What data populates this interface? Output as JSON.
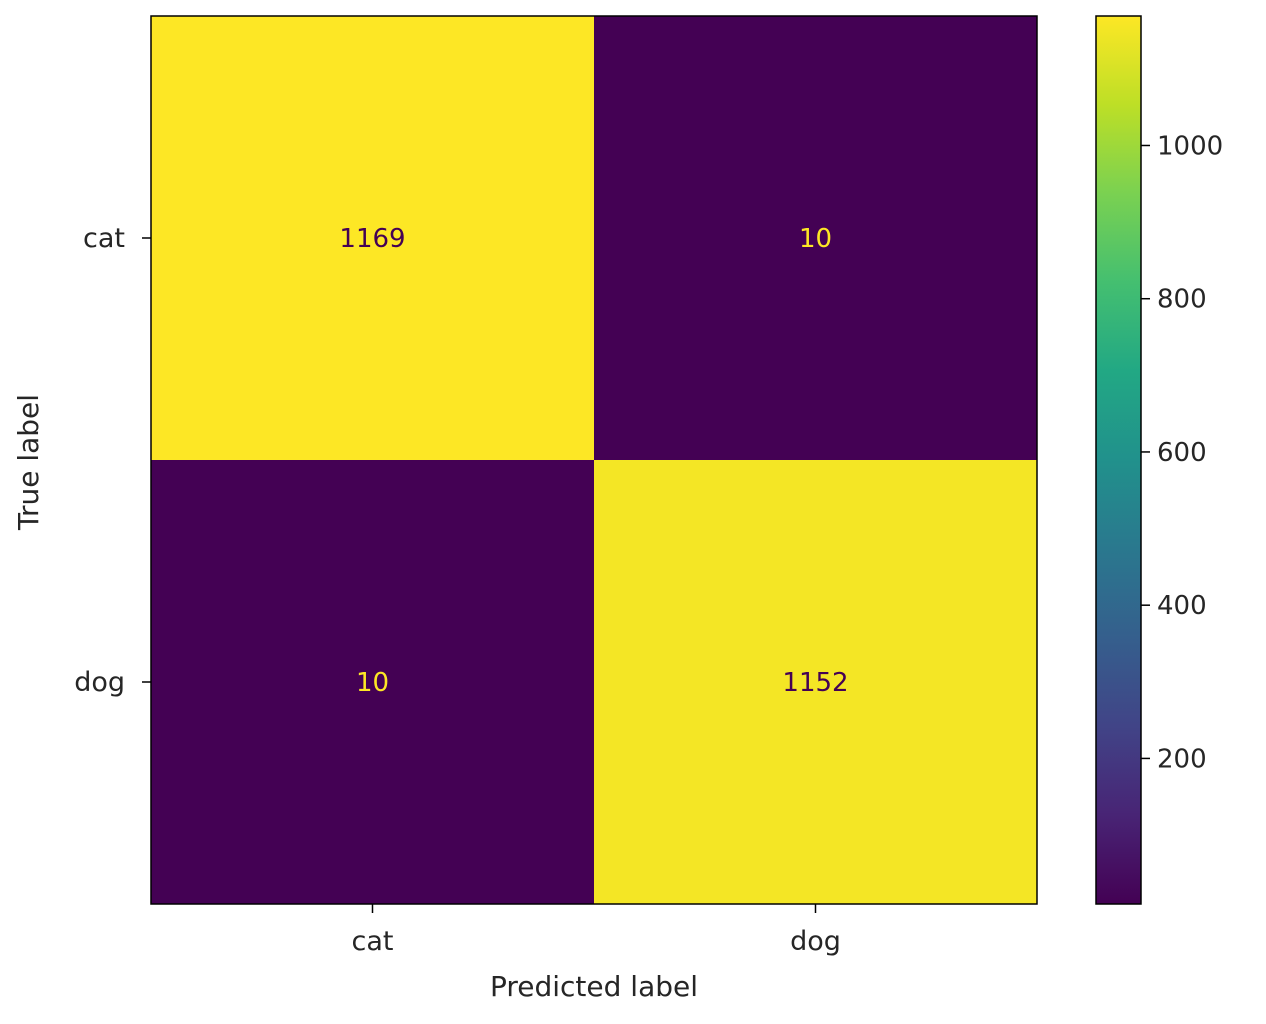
{
  "chart_data": {
    "type": "heatmap",
    "title": "",
    "xlabel": "Predicted label",
    "ylabel": "True label",
    "x_categories": [
      "cat",
      "dog"
    ],
    "y_categories": [
      "cat",
      "dog"
    ],
    "matrix": [
      [
        1169,
        10
      ],
      [
        10,
        1152
      ]
    ],
    "colormap": "viridis",
    "colorbar": {
      "min": 10,
      "max": 1169,
      "ticks": [
        200,
        400,
        600,
        800,
        1000
      ]
    },
    "colors": {
      "high": "#fde725",
      "low": "#440154",
      "text_on_dark": "#fde725",
      "text_on_light": "#440154"
    },
    "grid": false
  }
}
